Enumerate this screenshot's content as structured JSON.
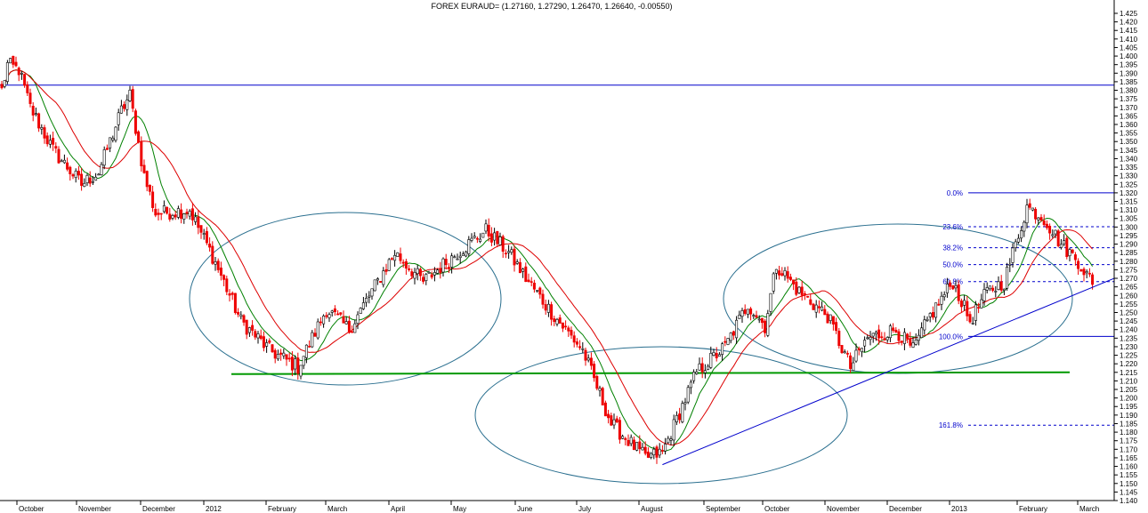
{
  "chart_data": {
    "type": "candlestick",
    "title": "FOREX EURAUD= (1.27160, 1.27290, 1.26470, 1.26640, -0.00550)",
    "ylim": [
      1.14,
      1.425
    ],
    "y_ticks": [
      1.14,
      1.145,
      1.15,
      1.155,
      1.16,
      1.165,
      1.17,
      1.175,
      1.18,
      1.185,
      1.19,
      1.195,
      1.2,
      1.205,
      1.21,
      1.215,
      1.22,
      1.225,
      1.23,
      1.235,
      1.24,
      1.245,
      1.25,
      1.255,
      1.26,
      1.265,
      1.27,
      1.275,
      1.28,
      1.285,
      1.29,
      1.295,
      1.3,
      1.305,
      1.31,
      1.315,
      1.32,
      1.325,
      1.33,
      1.335,
      1.34,
      1.345,
      1.35,
      1.355,
      1.36,
      1.365,
      1.37,
      1.375,
      1.38,
      1.385,
      1.39,
      1.395,
      1.4,
      1.405,
      1.41,
      1.415,
      1.42,
      1.425
    ],
    "x_labels": [
      "October",
      "November",
      "December",
      "2012",
      "February",
      "March",
      "April",
      "May",
      "June",
      "July",
      "August",
      "September",
      "October",
      "November",
      "December",
      "2013",
      "February",
      "March"
    ],
    "anchors": [
      {
        "bar": 0,
        "price": 1.38
      },
      {
        "bar": 2,
        "price": 1.395
      },
      {
        "bar": 6,
        "price": 1.392
      },
      {
        "bar": 10,
        "price": 1.37
      },
      {
        "bar": 18,
        "price": 1.345
      },
      {
        "bar": 28,
        "price": 1.325
      },
      {
        "bar": 34,
        "price": 1.332
      },
      {
        "bar": 42,
        "price": 1.368
      },
      {
        "bar": 45,
        "price": 1.377
      },
      {
        "bar": 50,
        "price": 1.33
      },
      {
        "bar": 54,
        "price": 1.308
      },
      {
        "bar": 66,
        "price": 1.31
      },
      {
        "bar": 74,
        "price": 1.283
      },
      {
        "bar": 84,
        "price": 1.245
      },
      {
        "bar": 94,
        "price": 1.228
      },
      {
        "bar": 104,
        "price": 1.218
      },
      {
        "bar": 114,
        "price": 1.252
      },
      {
        "bar": 122,
        "price": 1.24
      },
      {
        "bar": 138,
        "price": 1.285
      },
      {
        "bar": 148,
        "price": 1.268
      },
      {
        "bar": 160,
        "price": 1.285
      },
      {
        "bar": 170,
        "price": 1.298
      },
      {
        "bar": 178,
        "price": 1.285
      },
      {
        "bar": 184,
        "price": 1.27
      },
      {
        "bar": 194,
        "price": 1.248
      },
      {
        "bar": 204,
        "price": 1.228
      },
      {
        "bar": 214,
        "price": 1.185
      },
      {
        "bar": 226,
        "price": 1.165
      },
      {
        "bar": 232,
        "price": 1.168
      },
      {
        "bar": 244,
        "price": 1.215
      },
      {
        "bar": 254,
        "price": 1.23
      },
      {
        "bar": 262,
        "price": 1.255
      },
      {
        "bar": 268,
        "price": 1.242
      },
      {
        "bar": 272,
        "price": 1.278
      },
      {
        "bar": 280,
        "price": 1.262
      },
      {
        "bar": 290,
        "price": 1.248
      },
      {
        "bar": 298,
        "price": 1.218
      },
      {
        "bar": 304,
        "price": 1.235
      },
      {
        "bar": 314,
        "price": 1.24
      },
      {
        "bar": 320,
        "price": 1.228
      },
      {
        "bar": 326,
        "price": 1.248
      },
      {
        "bar": 334,
        "price": 1.268
      },
      {
        "bar": 340,
        "price": 1.245
      },
      {
        "bar": 346,
        "price": 1.262
      },
      {
        "bar": 352,
        "price": 1.268
      },
      {
        "bar": 356,
        "price": 1.29
      },
      {
        "bar": 360,
        "price": 1.312
      },
      {
        "bar": 366,
        "price": 1.305
      },
      {
        "bar": 372,
        "price": 1.29
      },
      {
        "bar": 378,
        "price": 1.28
      },
      {
        "bar": 383,
        "price": 1.267
      }
    ],
    "horizontal_lines": [
      {
        "price": 1.383,
        "color": "#0000cc"
      },
      {
        "price": 1.214,
        "color": "#009900"
      }
    ],
    "trendline": {
      "from": {
        "bar": 232,
        "price": 1.161
      },
      "to": {
        "bar": 395,
        "price": 1.27
      }
    },
    "fibonacci": {
      "high": 1.32,
      "low": 1.236,
      "levels": [
        {
          "label": "0.0%",
          "ratio": 0.0,
          "style": "solid"
        },
        {
          "label": "23.6%",
          "ratio": 0.236,
          "style": "dashed"
        },
        {
          "label": "38.2%",
          "ratio": 0.382,
          "style": "dashed"
        },
        {
          "label": "50.0%",
          "ratio": 0.5,
          "style": "dashed"
        },
        {
          "label": "61.8%",
          "ratio": 0.618,
          "style": "dashed"
        },
        {
          "label": "100.0%",
          "ratio": 1.0,
          "style": "solid"
        },
        {
          "label": "161.8%",
          "ratio": 1.618,
          "style": "dashed"
        }
      ]
    },
    "moving_averages": [
      {
        "period": 10,
        "color": "#008000"
      },
      {
        "period": 20,
        "color": "#dd0000"
      }
    ],
    "colors": {
      "up": "#000000",
      "down": "#ee0000",
      "ellipse": "#2a6f8f",
      "fib": "#0000cc"
    }
  }
}
